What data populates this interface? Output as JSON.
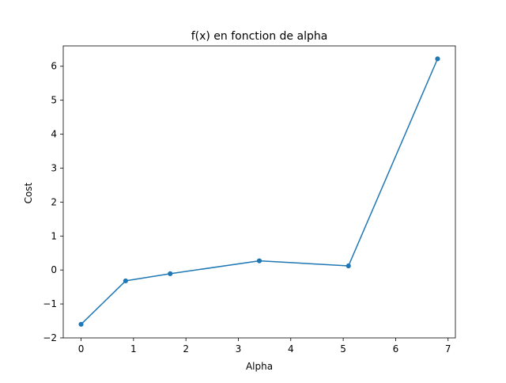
{
  "chart_data": {
    "type": "line",
    "title": "f(x) en fonction de alpha",
    "xlabel": "Alpha",
    "ylabel": "Cost",
    "xlim": [
      -0.34,
      7.14
    ],
    "ylim": [
      -2.0,
      6.6
    ],
    "xticks": [
      0,
      1,
      2,
      3,
      4,
      5,
      6,
      7
    ],
    "xtick_labels": [
      "0",
      "1",
      "2",
      "3",
      "4",
      "5",
      "6",
      "7"
    ],
    "yticks": [
      -2,
      -1,
      0,
      1,
      2,
      3,
      4,
      5,
      6
    ],
    "ytick_labels": [
      "−2",
      "−1",
      "0",
      "1",
      "2",
      "3",
      "4",
      "5",
      "6"
    ],
    "grid": false,
    "legend": "none",
    "series": [
      {
        "x": [
          0,
          0.85,
          1.7,
          3.4,
          5.1,
          6.8
        ],
        "y": [
          -1.6,
          -0.32,
          -0.11,
          0.27,
          0.12,
          6.22
        ],
        "color": "#1f77b4",
        "marker": "circle"
      }
    ]
  }
}
